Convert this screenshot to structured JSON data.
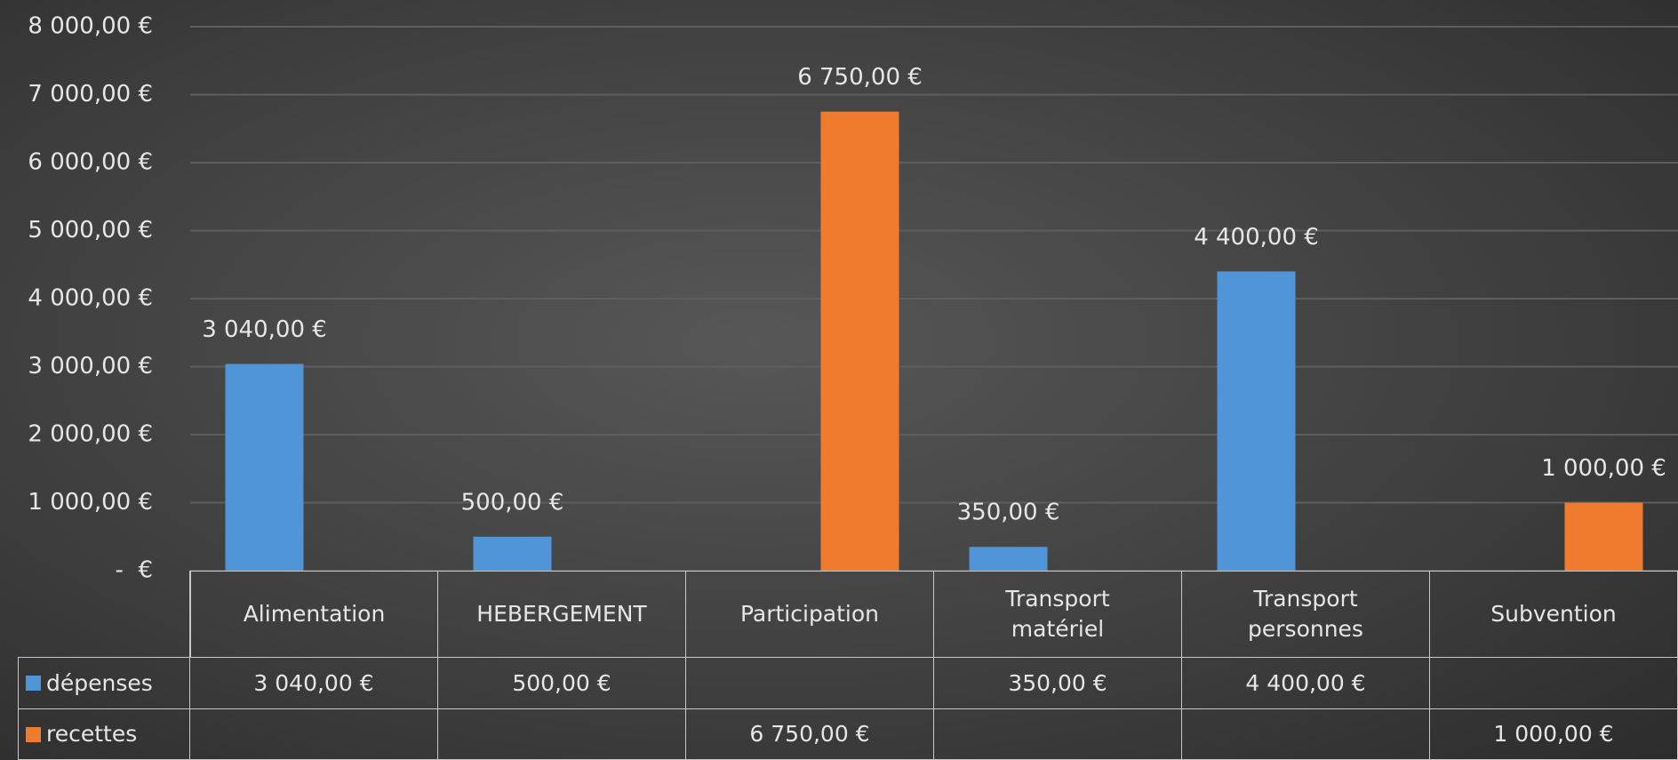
{
  "chart_data": {
    "type": "bar",
    "categories": [
      "Alimentation",
      "HEBERGEMENT",
      "Participation",
      "Transport matériel",
      "Transport personnes",
      "Subvention"
    ],
    "series": [
      {
        "name": "dépenses",
        "color": "#4f95d8",
        "values": [
          3040,
          500,
          null,
          350,
          4400,
          null
        ],
        "value_labels": [
          "3 040,00 €",
          "500,00 €",
          null,
          "350,00 €",
          "4 400,00 €",
          null
        ]
      },
      {
        "name": "recettes",
        "color": "#ee7b2e",
        "values": [
          null,
          null,
          6750,
          null,
          null,
          1000
        ],
        "value_labels": [
          null,
          null,
          "6 750,00 €",
          null,
          null,
          "1 000,00 €"
        ]
      }
    ],
    "ylim": [
      0,
      8000
    ],
    "yticks": [
      {
        "value": 0,
        "label": "-  €"
      },
      {
        "value": 1000,
        "label": "1 000,00 €"
      },
      {
        "value": 2000,
        "label": "2 000,00 €"
      },
      {
        "value": 3000,
        "label": "3 000,00 €"
      },
      {
        "value": 4000,
        "label": "4 000,00 €"
      },
      {
        "value": 5000,
        "label": "5 000,00 €"
      },
      {
        "value": 6000,
        "label": "6 000,00 €"
      },
      {
        "value": 7000,
        "label": "7 000,00 €"
      },
      {
        "value": 8000,
        "label": "8 000,00 €"
      }
    ],
    "grid": true,
    "data_table": true
  }
}
